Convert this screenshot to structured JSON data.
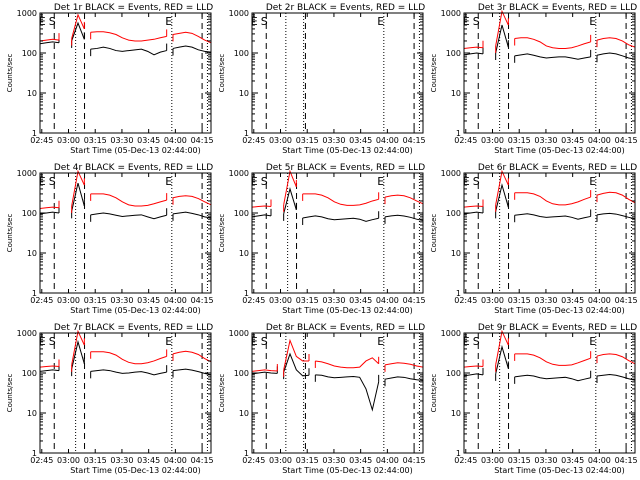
{
  "figure": {
    "time_range_min": [
      0,
      96
    ],
    "ylim": [
      1,
      1000
    ],
    "x_ticks": [
      {
        "t": 1,
        "label": "02:45"
      },
      {
        "t": 16,
        "label": "03:00"
      },
      {
        "t": 31,
        "label": "03:15"
      },
      {
        "t": 46,
        "label": "03:30"
      },
      {
        "t": 61,
        "label": "03:45"
      },
      {
        "t": 76,
        "label": "04:00"
      },
      {
        "t": 91,
        "label": "04:15"
      }
    ],
    "y_ticks": [
      {
        "v": 1,
        "label": "1"
      },
      {
        "v": 10,
        "label": "10"
      },
      {
        "v": 100,
        "label": "100"
      },
      {
        "v": 1000,
        "label": "1000"
      }
    ],
    "ylabel": "Counts/sec",
    "xlabel": "Start Time (05-Dec-13 02:44:00)",
    "colors": {
      "events": "#000000",
      "lld": "#ff0000"
    }
  },
  "chart_data": [
    {
      "type": "line",
      "title": "Det 1r BLACK = Events, RED = LLD",
      "markers": {
        "E1": 1,
        "S": 6,
        "E2": 72
      },
      "dashed": [
        8,
        25,
        91
      ],
      "dotted": [
        20,
        74,
        94
      ],
      "segments": [
        [
          0,
          13
        ],
        [
          15,
          27
        ],
        [
          28,
          73
        ],
        [
          74,
          96
        ]
      ],
      "series": [
        {
          "name": "Events",
          "values": [
            170,
            180,
            190,
            180,
            175,
            200,
            560,
            220,
            125,
            130,
            140,
            130,
            115,
            110,
            115,
            120,
            125,
            110,
            90,
            105,
            115,
            130,
            140,
            150,
            140,
            120,
            110,
            105
          ]
        },
        {
          "name": "LLD",
          "values": [
            200,
            210,
            220,
            210,
            205,
            230,
            900,
            400,
            330,
            340,
            340,
            320,
            290,
            240,
            210,
            200,
            200,
            210,
            220,
            240,
            260,
            290,
            310,
            330,
            310,
            260,
            210,
            180
          ]
        }
      ]
    },
    {
      "type": "line",
      "title": "Det 2r BLACK = Events, RED = LLD",
      "markers": {
        "E1": 1,
        "S": 6,
        "E2": 72
      },
      "dashed": [
        8,
        30,
        91
      ],
      "dotted": [
        19,
        29,
        74,
        94
      ],
      "segments": [],
      "series": [
        {
          "name": "Events",
          "values": []
        },
        {
          "name": "LLD",
          "values": []
        }
      ]
    },
    {
      "type": "line",
      "title": "Det 3r BLACK = Events, RED = LLD",
      "markers": {
        "E1": 1,
        "S": 6,
        "E2": 72
      },
      "dashed": [
        8,
        25,
        91
      ],
      "dotted": [
        20,
        74,
        94
      ],
      "segments": [
        [
          0,
          13
        ],
        [
          15,
          27
        ],
        [
          28,
          73
        ],
        [
          74,
          96
        ]
      ],
      "series": [
        {
          "name": "Events",
          "values": [
            90,
            95,
            100,
            95,
            92,
            100,
            500,
            140,
            85,
            90,
            95,
            88,
            80,
            75,
            78,
            80,
            80,
            75,
            70,
            75,
            80,
            88,
            95,
            100,
            95,
            85,
            75,
            70
          ]
        },
        {
          "name": "LLD",
          "values": [
            130,
            135,
            140,
            135,
            130,
            150,
            1100,
            500,
            230,
            240,
            240,
            220,
            190,
            150,
            135,
            130,
            130,
            135,
            150,
            170,
            190,
            210,
            230,
            240,
            230,
            200,
            160,
            140
          ]
        }
      ]
    },
    {
      "type": "line",
      "title": "Det 4r BLACK = Events, RED = LLD",
      "markers": {
        "E1": 1,
        "S": 6,
        "E2": 72
      },
      "dashed": [
        8,
        25,
        91
      ],
      "dotted": [
        20,
        74,
        94
      ],
      "segments": [
        [
          0,
          13
        ],
        [
          15,
          27
        ],
        [
          28,
          73
        ],
        [
          74,
          96
        ]
      ],
      "series": [
        {
          "name": "Events",
          "values": [
            95,
            100,
            105,
            100,
            98,
            110,
            560,
            150,
            90,
            95,
            100,
            95,
            88,
            82,
            85,
            88,
            90,
            80,
            72,
            80,
            88,
            95,
            100,
            105,
            98,
            90,
            80,
            75
          ]
        },
        {
          "name": "LLD",
          "values": [
            130,
            135,
            140,
            135,
            130,
            150,
            1100,
            500,
            300,
            300,
            300,
            280,
            240,
            190,
            160,
            150,
            150,
            155,
            170,
            190,
            210,
            240,
            260,
            270,
            260,
            230,
            190,
            160
          ]
        }
      ]
    },
    {
      "type": "line",
      "title": "Det 5r BLACK = Events, RED = LLD",
      "markers": {
        "E1": 1,
        "S": 6,
        "E2": 72
      },
      "dashed": [
        8,
        25,
        91
      ],
      "dotted": [
        20,
        74,
        94
      ],
      "segments": [
        [
          0,
          13
        ],
        [
          15,
          27
        ],
        [
          28,
          73
        ],
        [
          74,
          96
        ]
      ],
      "series": [
        {
          "name": "Events",
          "values": [
            80,
            85,
            90,
            85,
            82,
            95,
            400,
            120,
            75,
            80,
            85,
            80,
            72,
            68,
            70,
            72,
            74,
            70,
            62,
            68,
            74,
            80,
            85,
            88,
            84,
            78,
            70,
            65
          ]
        },
        {
          "name": "LLD",
          "values": [
            140,
            145,
            150,
            145,
            140,
            160,
            1100,
            450,
            300,
            300,
            300,
            280,
            240,
            190,
            165,
            155,
            155,
            160,
            175,
            200,
            220,
            250,
            270,
            280,
            270,
            240,
            200,
            170
          ]
        }
      ]
    },
    {
      "type": "line",
      "title": "Det 6r BLACK = Events, RED = LLD",
      "markers": {
        "E1": 1,
        "S": 6,
        "E2": 72
      },
      "dashed": [
        8,
        25,
        91
      ],
      "dotted": [
        20,
        74,
        94
      ],
      "segments": [
        [
          0,
          13
        ],
        [
          15,
          27
        ],
        [
          28,
          73
        ],
        [
          74,
          96
        ]
      ],
      "series": [
        {
          "name": "Events",
          "values": [
            95,
            100,
            105,
            100,
            98,
            110,
            500,
            140,
            88,
            92,
            96,
            90,
            82,
            78,
            80,
            82,
            84,
            78,
            70,
            76,
            82,
            90,
            95,
            98,
            94,
            86,
            78,
            72
          ]
        },
        {
          "name": "LLD",
          "values": [
            140,
            145,
            150,
            145,
            140,
            160,
            1100,
            500,
            320,
            320,
            320,
            300,
            260,
            200,
            170,
            160,
            160,
            170,
            190,
            220,
            250,
            280,
            310,
            330,
            320,
            280,
            220,
            180
          ]
        }
      ]
    },
    {
      "type": "line",
      "title": "Det 7r BLACK = Events, RED = LLD",
      "markers": {
        "E1": 1,
        "S": 6,
        "E2": 72
      },
      "dashed": [
        8,
        25,
        91
      ],
      "dotted": [
        20,
        74,
        94
      ],
      "segments": [
        [
          0,
          13
        ],
        [
          15,
          27
        ],
        [
          28,
          73
        ],
        [
          74,
          96
        ]
      ],
      "series": [
        {
          "name": "Events",
          "values": [
            110,
            115,
            120,
            115,
            112,
            125,
            600,
            170,
            110,
            115,
            120,
            115,
            105,
            98,
            100,
            105,
            108,
            100,
            90,
            98,
            105,
            115,
            120,
            125,
            118,
            108,
            98,
            90
          ]
        },
        {
          "name": "LLD",
          "values": [
            140,
            145,
            150,
            145,
            140,
            160,
            1100,
            500,
            340,
            340,
            340,
            320,
            280,
            220,
            185,
            170,
            170,
            180,
            200,
            230,
            260,
            300,
            330,
            350,
            330,
            290,
            230,
            190
          ]
        }
      ]
    },
    {
      "type": "line",
      "title": "Det 8r BLACK = Events, RED = LLD",
      "markers": {
        "E1": 1,
        "S": 6,
        "E2": 72
      },
      "dashed": [
        8,
        30,
        91
      ],
      "dotted": [
        19,
        29,
        74,
        94
      ],
      "segments": [
        [
          0,
          15
        ],
        [
          17,
          32
        ],
        [
          33,
          73
        ],
        [
          74,
          96
        ]
      ],
      "series": [
        {
          "name": "Events",
          "values": [
            95,
            100,
            105,
            100,
            98,
            105,
            300,
            120,
            85,
            88,
            90,
            88,
            80,
            76,
            78,
            80,
            82,
            78,
            40,
            12,
            60,
            70,
            75,
            80,
            78,
            72,
            68,
            65
          ]
        },
        {
          "name": "LLD",
          "values": [
            110,
            115,
            120,
            115,
            112,
            120,
            650,
            260,
            200,
            200,
            200,
            190,
            170,
            150,
            140,
            135,
            135,
            140,
            200,
            240,
            170,
            160,
            170,
            180,
            175,
            165,
            150,
            140
          ]
        }
      ]
    },
    {
      "type": "line",
      "title": "Det 9r BLACK = Events, RED = LLD",
      "markers": {
        "E1": 1,
        "S": 6,
        "E2": 72
      },
      "dashed": [
        8,
        25,
        91
      ],
      "dotted": [
        20,
        74,
        94
      ],
      "segments": [
        [
          0,
          13
        ],
        [
          15,
          27
        ],
        [
          28,
          73
        ],
        [
          74,
          96
        ]
      ],
      "series": [
        {
          "name": "Events",
          "values": [
            85,
            90,
            95,
            90,
            88,
            95,
            450,
            130,
            80,
            84,
            88,
            84,
            76,
            72,
            74,
            76,
            78,
            72,
            64,
            70,
            76,
            84,
            88,
            92,
            88,
            80,
            72,
            66
          ]
        },
        {
          "name": "LLD",
          "values": [
            140,
            145,
            150,
            145,
            140,
            160,
            1100,
            500,
            300,
            300,
            300,
            280,
            240,
            190,
            165,
            155,
            155,
            160,
            180,
            205,
            235,
            265,
            290,
            300,
            290,
            255,
            205,
            170
          ]
        }
      ]
    }
  ]
}
